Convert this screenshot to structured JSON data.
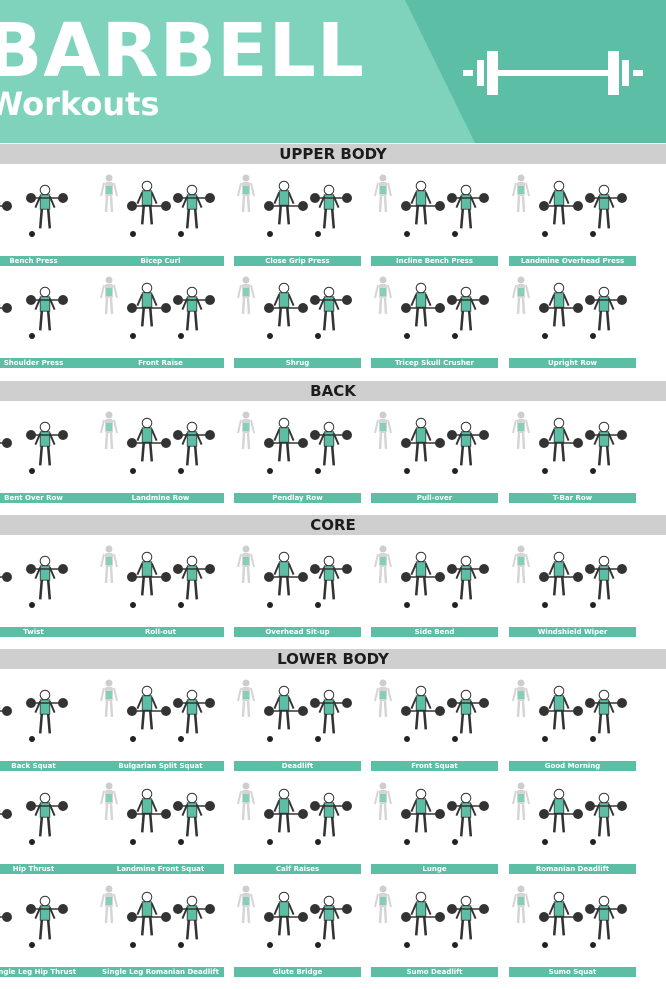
{
  "header": {
    "title": "BARBELL",
    "subtitle": "Workouts",
    "logo_icon": "barbell-icon"
  },
  "colors": {
    "header_bg": "#7fd3bd",
    "header_dark": "#5cbea4",
    "label_bg": "#5cbea4",
    "section_bg": "#cfcfcf",
    "figure_accent": "#5cbea4"
  },
  "sections": [
    {
      "title": "UPPER BODY",
      "rows": [
        [
          "Bench Press",
          "Bicep Curl",
          "Close Grip Press",
          "Incline Bench Press",
          "Landmine Overhead Press"
        ],
        [
          "Shoulder Press",
          "Front Raise",
          "Shrug",
          "Tricep Skull Crusher",
          "Upright Row"
        ]
      ]
    },
    {
      "title": "BACK",
      "rows": [
        [
          "Bent Over Row",
          "Landmine Row",
          "Pendlay Row",
          "Pull-over",
          "T-Bar Row"
        ]
      ]
    },
    {
      "title": "CORE",
      "rows": [
        [
          "Twist",
          "Roll-out",
          "Overhead Sit-up",
          "Side Bend",
          "Windshield Wiper"
        ]
      ]
    },
    {
      "title": "LOWER BODY",
      "rows": [
        [
          "Back Squat",
          "Bulgarian Split Squat",
          "Deadlift",
          "Front Squat",
          "Good Morning"
        ],
        [
          "Hip Thrust",
          "Landmine Front Squat",
          "Calf Raises",
          "Lunge",
          "Romanian Deadlift"
        ],
        [
          "Single Leg Hip Thrust",
          "Single Leg Romanian Deadlift",
          "Glute Bridge",
          "Sumo Deadlift",
          "Sumo Squat"
        ]
      ]
    }
  ]
}
